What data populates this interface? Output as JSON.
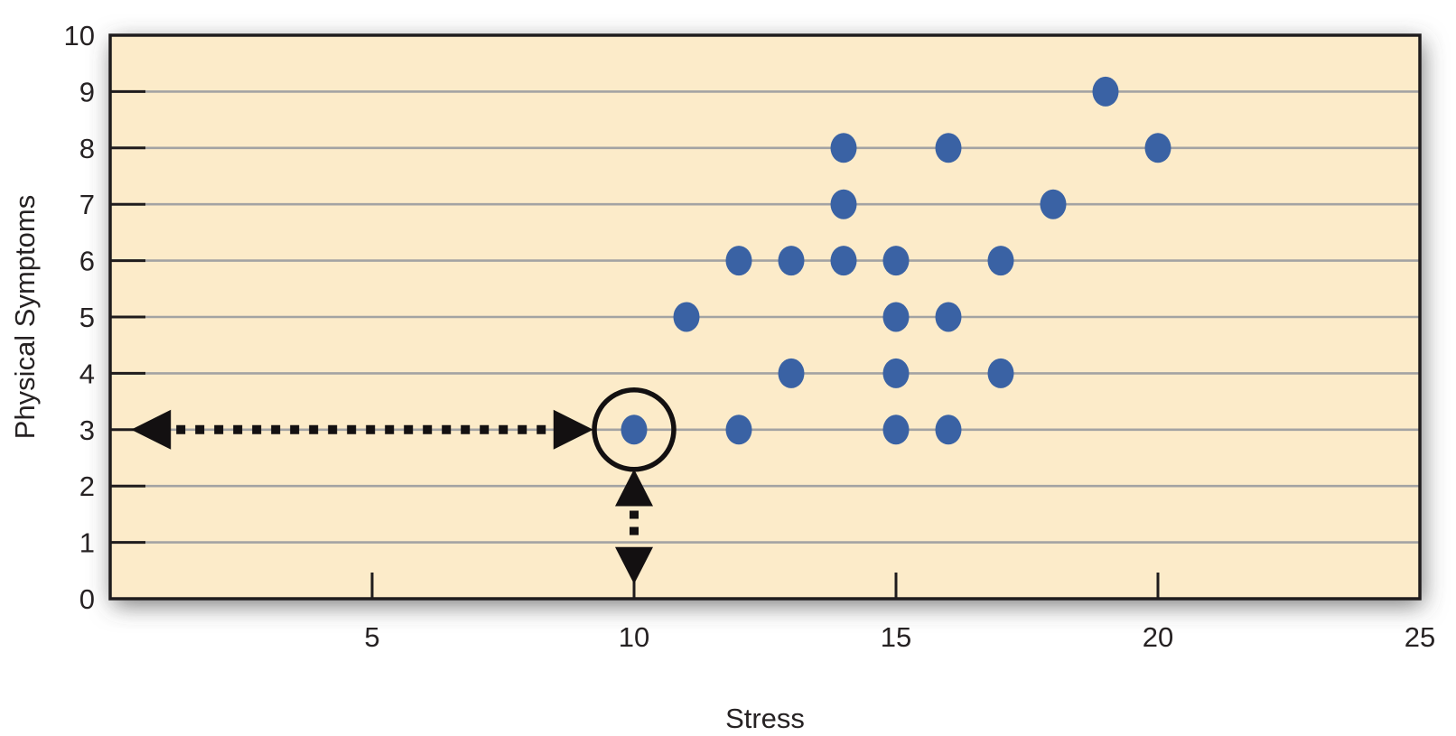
{
  "chart_data": {
    "type": "scatter",
    "title": "",
    "xlabel": "Stress",
    "ylabel": "Physical Symptoms",
    "xlim": [
      0,
      25
    ],
    "ylim": [
      0,
      10
    ],
    "x_tick_labels": [
      5,
      10,
      15,
      20,
      25
    ],
    "x_tick_marks": [
      5,
      10,
      15,
      20
    ],
    "y_tick_labels": [
      0,
      1,
      2,
      3,
      4,
      5,
      6,
      7,
      8,
      9,
      10
    ],
    "y_tick_marks": [
      1,
      2,
      3,
      4,
      5,
      6,
      7,
      8,
      9
    ],
    "grid": "horizontal",
    "legend": "none",
    "points": [
      {
        "x": 10,
        "y": 3
      },
      {
        "x": 11,
        "y": 5
      },
      {
        "x": 12,
        "y": 3
      },
      {
        "x": 12,
        "y": 6
      },
      {
        "x": 13,
        "y": 4
      },
      {
        "x": 13,
        "y": 6
      },
      {
        "x": 14,
        "y": 6
      },
      {
        "x": 14,
        "y": 7
      },
      {
        "x": 14,
        "y": 8
      },
      {
        "x": 15,
        "y": 3
      },
      {
        "x": 15,
        "y": 4
      },
      {
        "x": 15,
        "y": 5
      },
      {
        "x": 15,
        "y": 6
      },
      {
        "x": 16,
        "y": 3
      },
      {
        "x": 16,
        "y": 5
      },
      {
        "x": 16,
        "y": 8
      },
      {
        "x": 17,
        "y": 4
      },
      {
        "x": 17,
        "y": 6
      },
      {
        "x": 18,
        "y": 7
      },
      {
        "x": 19,
        "y": 9
      },
      {
        "x": 20,
        "y": 8
      }
    ],
    "highlight": {
      "point": {
        "x": 10,
        "y": 3
      },
      "circle_radius_px": 44
    },
    "arrows": [
      {
        "orientation": "horizontal",
        "y": 3,
        "from_x": 0.4,
        "to_x": 9.22,
        "style": "dotted",
        "double_headed": true
      },
      {
        "orientation": "vertical",
        "x": 10,
        "from_y": 0.26,
        "to_y": 2.3,
        "style": "dotted",
        "double_headed": true
      }
    ],
    "colors": {
      "point": "#3A62A4",
      "plot_background": "#FCEBC9",
      "gridline": "#A3A3A3",
      "axis": "#1F1C1D",
      "annotation": "#131011",
      "text": "#262223",
      "page_background": "#FFFFFF"
    }
  }
}
